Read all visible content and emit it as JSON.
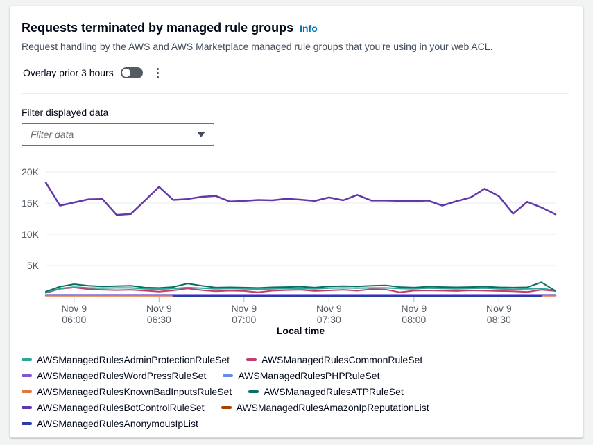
{
  "header": {
    "title": "Requests terminated by managed rule groups",
    "info_label": "Info",
    "description": "Request handling by the AWS and AWS Marketplace managed rule groups that you're using in your web ACL."
  },
  "controls": {
    "overlay_toggle_label": "Overlay prior 3 hours",
    "overlay_toggle_state": "off"
  },
  "filter": {
    "label": "Filter displayed data",
    "placeholder": "Filter data"
  },
  "chart_data": {
    "type": "line",
    "x_axis_title": "Local time",
    "ylim": [
      0,
      21500
    ],
    "grid": true,
    "legend_position": "bottom",
    "y_ticks": [
      {
        "value": 5000,
        "label": "5K"
      },
      {
        "value": 10000,
        "label": "10K"
      },
      {
        "value": 15000,
        "label": "15K"
      },
      {
        "value": 20000,
        "label": "20K"
      }
    ],
    "x_ticks": [
      {
        "index": 2,
        "line1": "Nov 9",
        "line2": "06:00"
      },
      {
        "index": 8,
        "line1": "Nov 9",
        "line2": "06:30"
      },
      {
        "index": 14,
        "line1": "Nov 9",
        "line2": "07:00"
      },
      {
        "index": 20,
        "line1": "Nov 9",
        "line2": "07:30"
      },
      {
        "index": 26,
        "line1": "Nov 9",
        "line2": "08:00"
      },
      {
        "index": 32,
        "line1": "Nov 9",
        "line2": "08:30"
      }
    ],
    "series": [
      {
        "name": "AWSManagedRulesAdminProtectionRuleSet",
        "color": "#2ea597",
        "z": 7,
        "stroke_width": 2,
        "values": [
          700,
          1300,
          1550,
          1400,
          1350,
          1400,
          1400,
          1250,
          1200,
          1300,
          1450,
          1350,
          1250,
          1300,
          1250,
          1200,
          1250,
          1300,
          1300,
          1250,
          1350,
          1400,
          1350,
          1400,
          1400,
          1300,
          1250,
          1350,
          1300,
          1250,
          1300,
          1350,
          1250,
          1200,
          1250,
          1300,
          1000
        ]
      },
      {
        "name": "AWSManagedRulesCommonRuleSet",
        "color": "#c33d69",
        "z": 6,
        "stroke_width": 2,
        "values": [
          600,
          1250,
          1450,
          1200,
          1100,
          1050,
          1100,
          950,
          800,
          1000,
          1300,
          1050,
          850,
          950,
          900,
          700,
          950,
          1050,
          1100,
          900,
          1000,
          1100,
          950,
          1200,
          1150,
          700,
          950,
          1000,
          950,
          900,
          1000,
          950,
          900,
          850,
          750,
          1100,
          900
        ]
      },
      {
        "name": "AWSManagedRulesWordPressRuleSet",
        "color": "#8456ce",
        "z": 1,
        "stroke_width": 2,
        "values": [
          300,
          300,
          300,
          300,
          300,
          300,
          300,
          300,
          300,
          300,
          300,
          300,
          300,
          300,
          300,
          300,
          300,
          300,
          300,
          300,
          300,
          300,
          300,
          300,
          300,
          300,
          300,
          300,
          300,
          300,
          300,
          300,
          300,
          300,
          300,
          300,
          300
        ]
      },
      {
        "name": "AWSManagedRulesPHPRuleSet",
        "color": "#688ae8",
        "z": 2,
        "stroke_width": 2,
        "values": [
          250,
          250,
          250,
          250,
          250,
          250,
          250,
          250,
          250,
          250,
          250,
          250,
          250,
          250,
          250,
          250,
          250,
          250,
          250,
          250,
          250,
          250,
          250,
          250,
          250,
          250,
          250,
          250,
          250,
          250,
          250,
          250,
          250,
          250,
          250,
          250,
          250
        ]
      },
      {
        "name": "AWSManagedRulesKnownBadInputsRuleSet",
        "color": "#e07941",
        "z": 4,
        "stroke_width": 2.5,
        "values": [
          170,
          170,
          170,
          170,
          170,
          170,
          170,
          170,
          170,
          170,
          null,
          null,
          null,
          null,
          null,
          null,
          null,
          null,
          null,
          null,
          null,
          null,
          null,
          null,
          null,
          null,
          null,
          null,
          null,
          null,
          null,
          null,
          null,
          null,
          null,
          170,
          170
        ]
      },
      {
        "name": "AWSManagedRulesATPRuleSet",
        "color": "#096f64",
        "z": 8,
        "stroke_width": 2,
        "values": [
          800,
          1600,
          2000,
          1750,
          1650,
          1700,
          1750,
          1450,
          1400,
          1550,
          2100,
          1750,
          1450,
          1500,
          1450,
          1400,
          1500,
          1550,
          1600,
          1450,
          1650,
          1700,
          1650,
          1750,
          1800,
          1550,
          1450,
          1600,
          1550,
          1500,
          1550,
          1600,
          1500,
          1450,
          1500,
          2300,
          900
        ]
      },
      {
        "name": "AWSManagedRulesBotControlRuleSet",
        "color": "#6237a7",
        "z": 9,
        "stroke_width": 2.5,
        "values": [
          18300,
          14600,
          15100,
          15600,
          15650,
          13100,
          13250,
          15400,
          17600,
          15500,
          15650,
          16000,
          16150,
          15250,
          15350,
          15500,
          15450,
          15700,
          15550,
          15350,
          15900,
          15450,
          16300,
          15400,
          15400,
          15350,
          15300,
          15400,
          14600,
          15300,
          15900,
          17300,
          16100,
          13300,
          15200,
          14300,
          13200
        ]
      },
      {
        "name": "AWSManagedRulesAmazonIpReputationList",
        "color": "#a84401",
        "z": 3,
        "stroke_width": 2,
        "values": [
          200,
          200,
          200,
          200,
          200,
          200,
          200,
          200,
          200,
          200,
          200,
          200,
          200,
          200,
          200,
          200,
          200,
          200,
          200,
          200,
          200,
          200,
          200,
          200,
          200,
          200,
          200,
          200,
          200,
          200,
          200,
          200,
          200,
          200,
          200,
          200,
          200
        ]
      },
      {
        "name": "AWSManagedRulesAnonymousIpList",
        "color": "#273ea5",
        "z": 5,
        "stroke_width": 2.5,
        "values": [
          null,
          null,
          null,
          null,
          null,
          null,
          null,
          null,
          null,
          140,
          140,
          140,
          140,
          140,
          140,
          140,
          140,
          140,
          140,
          140,
          140,
          140,
          140,
          140,
          140,
          140,
          140,
          140,
          140,
          140,
          140,
          140,
          140,
          140,
          140,
          140,
          null
        ]
      }
    ]
  },
  "colors": {
    "grid": "#e9ebed",
    "tick": "#aab7b8",
    "axis_text": "#545b64",
    "axis_title": "#000716"
  }
}
